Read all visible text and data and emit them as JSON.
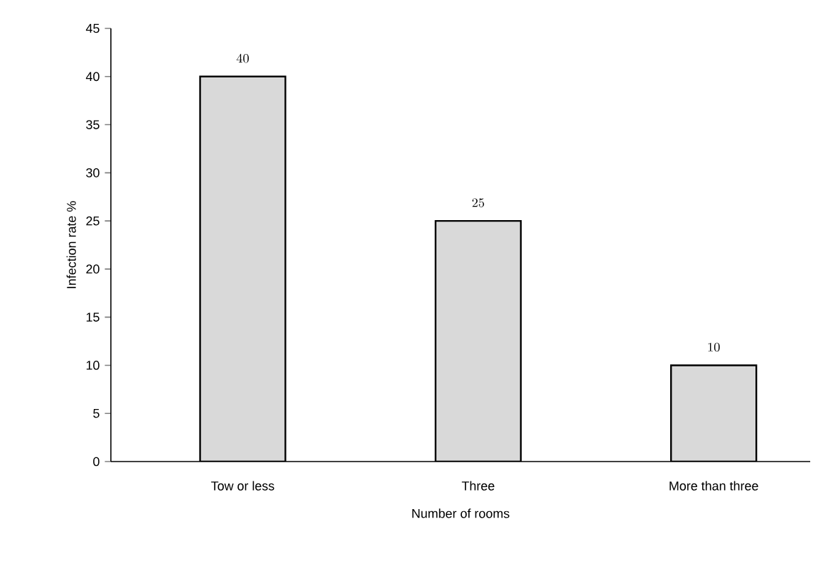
{
  "chart_data": {
    "type": "bar",
    "xlabel": "Number of rooms",
    "ylabel": "Infection rate %",
    "categories": [
      "Tow or less",
      "Three",
      "More than three"
    ],
    "values": [
      40,
      25,
      10
    ],
    "color": "#d9d9d9",
    "ylim": [
      0,
      45
    ],
    "yticks": [
      0,
      5,
      10,
      15,
      20,
      25,
      30,
      35,
      40,
      45
    ],
    "grid": false,
    "data_labels": true
  }
}
